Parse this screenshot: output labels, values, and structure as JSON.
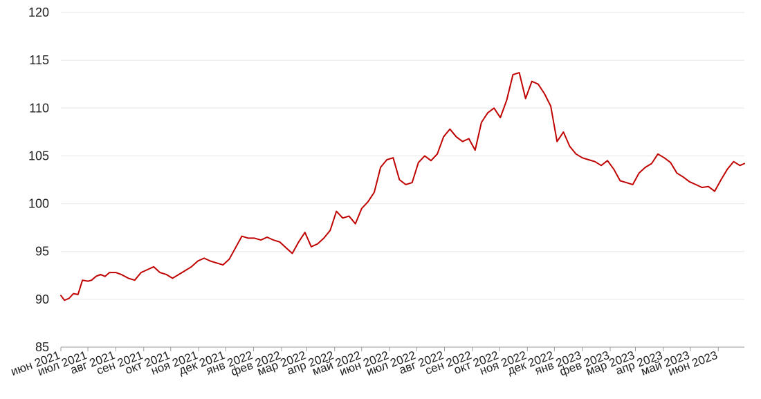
{
  "chart_data": {
    "type": "line",
    "title": "",
    "xlabel": "",
    "ylabel": "",
    "ylim": [
      85,
      120
    ],
    "y_ticks": [
      "85",
      "90",
      "95",
      "100",
      "105",
      "110",
      "115",
      "120"
    ],
    "x_ticks": [
      "июн 2021",
      "июл 2021",
      "авг 2021",
      "сен 2021",
      "окт 2021",
      "ноя 2021",
      "дек 2021",
      "янв 2022",
      "фев 2022",
      "мар 2022",
      "апр 2022",
      "май 2022",
      "июн 2022",
      "июл 2022",
      "авг 2022",
      "сен 2022",
      "окт 2022",
      "ноя 2022",
      "дек 2022",
      "янв 2023",
      "фев 2023",
      "мар 2023",
      "апр 2023",
      "май 2023",
      "июн 2023"
    ],
    "grid": "horizontal",
    "legend": "none",
    "colors": {
      "line": "#c00000",
      "grid": "#e6e6e6",
      "axis": "#999999"
    },
    "series": [
      {
        "x": [
          "2021-06-01",
          "2021-06-05",
          "2021-06-10",
          "2021-06-15",
          "2021-06-20",
          "2021-06-25",
          "2021-07-01",
          "2021-07-05",
          "2021-07-10",
          "2021-07-15",
          "2021-07-20",
          "2021-07-25",
          "2021-08-01",
          "2021-08-07",
          "2021-08-15",
          "2021-08-22",
          "2021-08-29",
          "2021-09-05",
          "2021-09-12",
          "2021-09-19",
          "2021-09-26",
          "2021-10-03",
          "2021-10-10",
          "2021-10-17",
          "2021-10-24",
          "2021-10-31",
          "2021-11-07",
          "2021-11-14",
          "2021-11-21",
          "2021-11-28",
          "2021-12-05",
          "2021-12-12",
          "2021-12-19",
          "2021-12-26",
          "2022-01-02",
          "2022-01-09",
          "2022-01-16",
          "2022-01-23",
          "2022-01-30",
          "2022-02-06",
          "2022-02-13",
          "2022-02-20",
          "2022-02-27",
          "2022-03-06",
          "2022-03-13",
          "2022-03-20",
          "2022-03-27",
          "2022-04-03",
          "2022-04-10",
          "2022-04-17",
          "2022-04-24",
          "2022-05-01",
          "2022-05-08",
          "2022-05-15",
          "2022-05-22",
          "2022-05-29",
          "2022-06-05",
          "2022-06-12",
          "2022-06-19",
          "2022-06-26",
          "2022-07-03",
          "2022-07-10",
          "2022-07-17",
          "2022-07-24",
          "2022-07-31",
          "2022-08-07",
          "2022-08-14",
          "2022-08-21",
          "2022-08-28",
          "2022-09-04",
          "2022-09-11",
          "2022-09-18",
          "2022-09-25",
          "2022-10-02",
          "2022-10-09",
          "2022-10-16",
          "2022-10-23",
          "2022-10-30",
          "2022-11-06",
          "2022-11-13",
          "2022-11-20",
          "2022-11-27",
          "2022-12-04",
          "2022-12-11",
          "2022-12-18",
          "2022-12-25",
          "2023-01-01",
          "2023-01-08",
          "2023-01-15",
          "2023-01-22",
          "2023-01-29",
          "2023-02-05",
          "2023-02-12",
          "2023-02-19",
          "2023-02-26",
          "2023-03-05",
          "2023-03-12",
          "2023-03-19",
          "2023-03-26",
          "2023-04-02",
          "2023-04-09",
          "2023-04-16",
          "2023-04-23",
          "2023-04-30",
          "2023-05-07",
          "2023-05-14",
          "2023-05-21",
          "2023-05-28",
          "2023-06-04",
          "2023-06-11",
          "2023-06-18",
          "2023-06-25",
          "2023-06-30"
        ],
        "y": [
          90.4,
          89.9,
          90.1,
          90.6,
          90.5,
          92.0,
          91.9,
          92.0,
          92.4,
          92.6,
          92.4,
          92.8,
          92.8,
          92.6,
          92.2,
          92.0,
          92.8,
          93.1,
          93.4,
          92.8,
          92.6,
          92.2,
          92.6,
          93.0,
          93.4,
          94.0,
          94.3,
          94.0,
          93.8,
          93.6,
          94.2,
          95.4,
          96.6,
          96.4,
          96.4,
          96.2,
          96.5,
          96.2,
          96.0,
          95.4,
          94.8,
          96.0,
          97.0,
          95.5,
          95.8,
          96.4,
          97.2,
          99.2,
          98.5,
          98.7,
          97.9,
          99.5,
          100.2,
          101.2,
          103.8,
          104.6,
          104.8,
          102.5,
          102.0,
          102.2,
          104.3,
          105.0,
          104.5,
          105.2,
          107.0,
          107.8,
          107.0,
          106.5,
          106.8,
          105.6,
          108.5,
          109.5,
          110.0,
          109.0,
          110.8,
          113.5,
          113.7,
          111.0,
          112.8,
          112.5,
          111.5,
          110.2,
          106.5,
          107.5,
          106.0,
          105.2,
          104.8,
          104.6,
          104.4,
          104.0,
          104.5,
          103.6,
          102.4,
          102.2,
          102.0,
          103.2,
          103.8,
          104.2,
          105.2,
          104.8,
          104.3,
          103.2,
          102.8,
          102.3,
          102.0,
          101.7,
          101.8,
          101.3,
          102.5,
          103.6,
          104.4,
          104.0,
          104.2
        ]
      }
    ]
  }
}
